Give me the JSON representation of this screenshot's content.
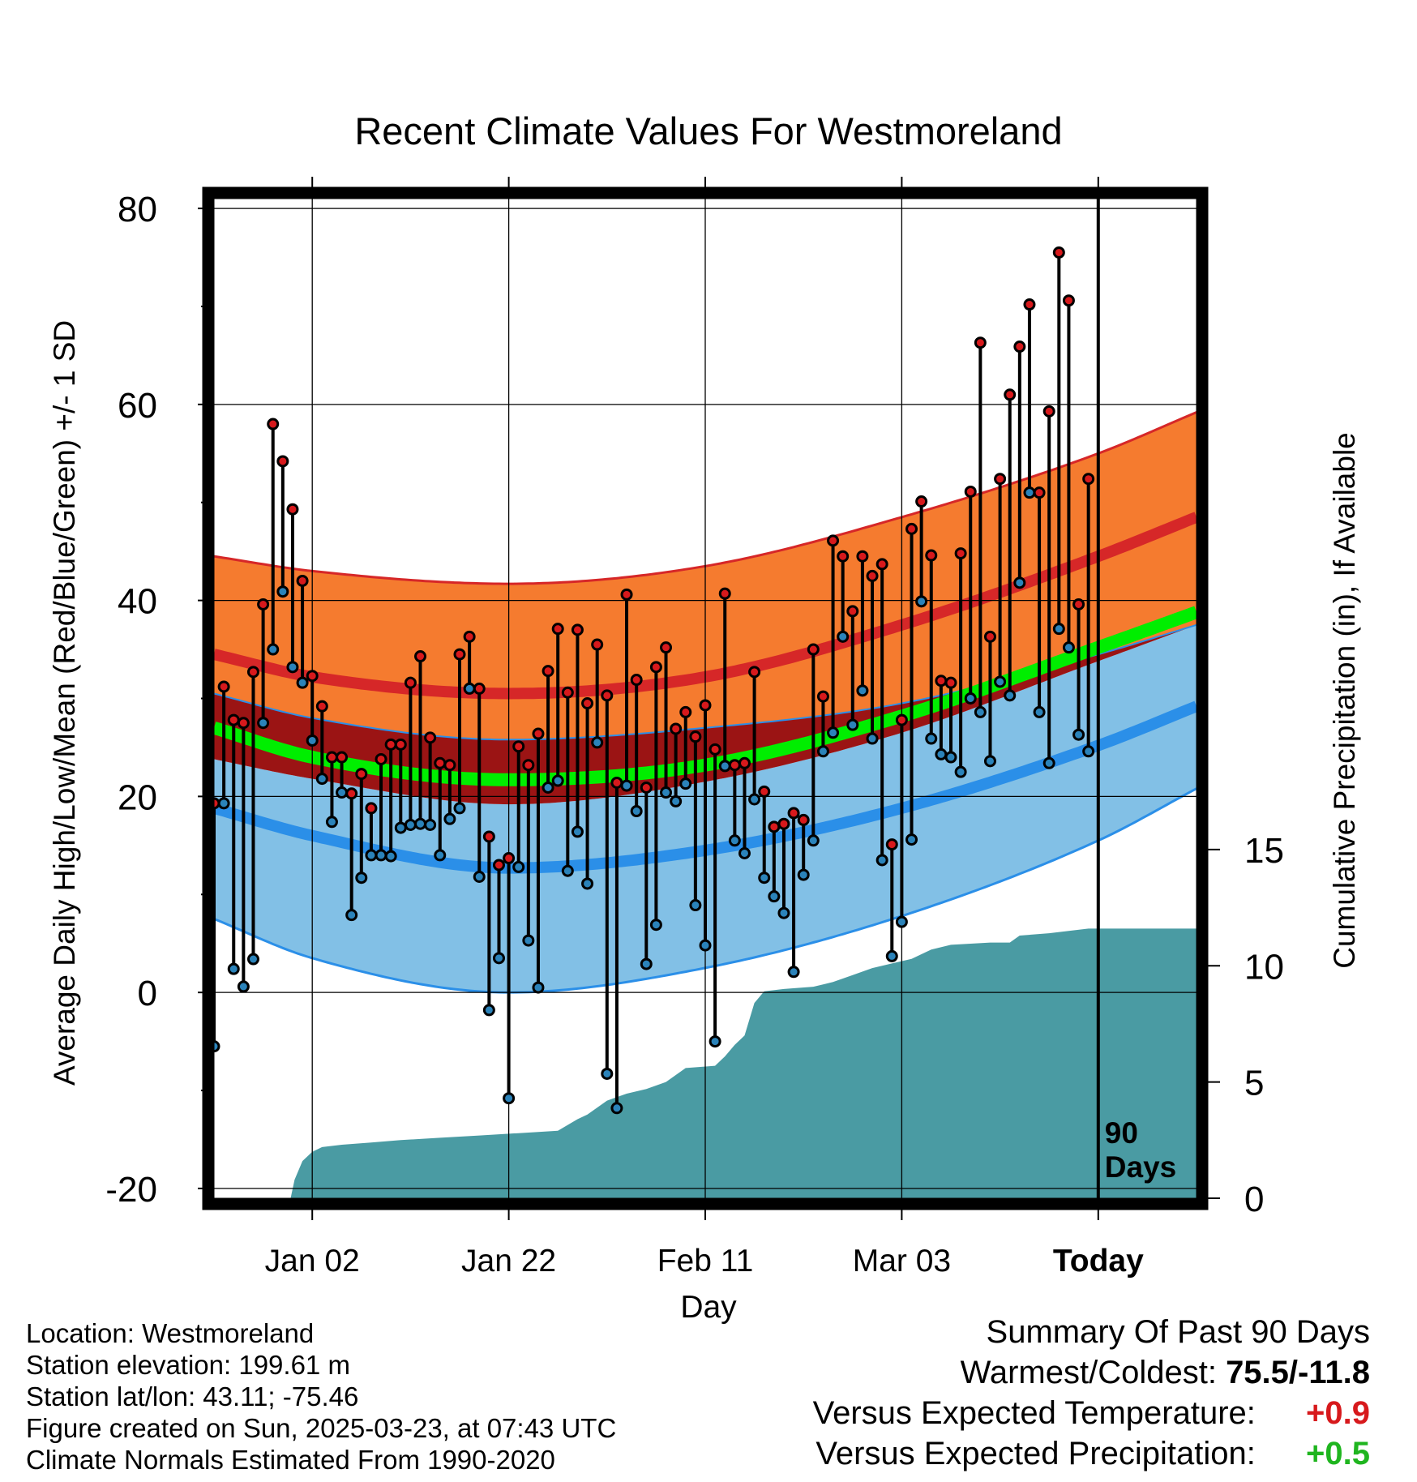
{
  "chart_data": {
    "type": "line",
    "title": "Recent Climate Values For Westmoreland",
    "xlabel": "Day",
    "ylabel_left": "Average Daily High/Low/Mean (Red/Blue/Green) +/- 1 SD",
    "ylabel_right": "Cumulative Precipitation (in), If Available",
    "x_range_days": [
      -79,
      21
    ],
    "y_range_temp": [
      -21,
      81
    ],
    "x_ticks": [
      {
        "day": -69,
        "label": "Jan 02"
      },
      {
        "day": -49,
        "label": "Jan 22"
      },
      {
        "day": -29,
        "label": "Feb 11"
      },
      {
        "day": -9,
        "label": "Mar 03"
      },
      {
        "day": 11,
        "label": "Today"
      }
    ],
    "y_ticks_left": [
      -20,
      0,
      20,
      40,
      60,
      80
    ],
    "y_ticks_right": [
      0,
      5,
      10,
      15
    ],
    "precip_scale_max": 43,
    "today_day": 11,
    "today_label": "90 Days",
    "normals": {
      "days": [
        -79,
        -69,
        -49,
        -29,
        -9,
        11,
        21
      ],
      "high_mean": [
        34.5,
        32.2,
        30.5,
        32.2,
        37.5,
        44.5,
        48.5
      ],
      "high_upper": [
        44.5,
        43.0,
        41.7,
        43.5,
        48.5,
        55.0,
        59.2
      ],
      "high_lower": [
        30.5,
        28.0,
        25.8,
        27.0,
        29.5,
        34.5,
        37.5
      ],
      "low_mean": [
        18.8,
        16.0,
        12.7,
        14.5,
        18.8,
        25.2,
        29.2
      ],
      "low_upper": [
        23.8,
        21.8,
        19.2,
        21.5,
        26.5,
        33.8,
        37.5
      ],
      "low_lower": [
        7.5,
        3.5,
        0.0,
        2.5,
        7.8,
        15.5,
        20.8
      ],
      "avg_mean": [
        27.0,
        24.0,
        21.7,
        23.2,
        28.2,
        35.2,
        38.8
      ]
    },
    "series": [
      {
        "name": "Daily High",
        "color": "#d7191c",
        "values": [
          [
            -79,
            19.3
          ],
          [
            -78,
            31.2
          ],
          [
            -77,
            27.8
          ],
          [
            -76,
            27.5
          ],
          [
            -75,
            32.7
          ],
          [
            -74,
            39.6
          ],
          [
            -73,
            58.0
          ],
          [
            -72,
            54.2
          ],
          [
            -71,
            49.3
          ],
          [
            -70,
            42.0
          ],
          [
            -69,
            32.3
          ],
          [
            -68,
            29.2
          ],
          [
            -67,
            24.0
          ],
          [
            -66,
            24.0
          ],
          [
            -65,
            20.3
          ],
          [
            -64,
            22.3
          ],
          [
            -63,
            18.8
          ],
          [
            -62,
            23.8
          ],
          [
            -61,
            25.3
          ],
          [
            -60,
            25.3
          ],
          [
            -59,
            31.6
          ],
          [
            -58,
            34.3
          ],
          [
            -57,
            26.0
          ],
          [
            -56,
            23.4
          ],
          [
            -55,
            23.2
          ],
          [
            -54,
            34.5
          ],
          [
            -53,
            36.3
          ],
          [
            -52,
            31.0
          ],
          [
            -51,
            15.9
          ],
          [
            -50,
            13.0
          ],
          [
            -49,
            13.7
          ],
          [
            -48,
            25.1
          ],
          [
            -47,
            23.2
          ],
          [
            -46,
            26.4
          ],
          [
            -45,
            32.8
          ],
          [
            -44,
            37.1
          ],
          [
            -43,
            30.6
          ],
          [
            -42,
            37.0
          ],
          [
            -41,
            29.5
          ],
          [
            -40,
            35.5
          ],
          [
            -39,
            30.3
          ],
          [
            -38,
            21.4
          ],
          [
            -37,
            40.6
          ],
          [
            -36,
            31.9
          ],
          [
            -35,
            20.9
          ],
          [
            -34,
            33.2
          ],
          [
            -33,
            35.2
          ],
          [
            -32,
            26.9
          ],
          [
            -31,
            28.6
          ],
          [
            -30,
            26.1
          ],
          [
            -29,
            29.3
          ],
          [
            -28,
            24.8
          ],
          [
            -27,
            40.7
          ],
          [
            -26,
            23.2
          ],
          [
            -25,
            23.4
          ],
          [
            -24,
            32.7
          ],
          [
            -23,
            20.5
          ],
          [
            -22,
            16.9
          ],
          [
            -21,
            17.2
          ],
          [
            -20,
            18.3
          ],
          [
            -19,
            17.6
          ],
          [
            -18,
            35.0
          ],
          [
            -17,
            30.2
          ],
          [
            -16,
            46.1
          ],
          [
            -15,
            44.5
          ],
          [
            -14,
            38.9
          ],
          [
            -13,
            44.5
          ],
          [
            -12,
            42.5
          ],
          [
            -11,
            43.7
          ],
          [
            -10,
            15.1
          ],
          [
            -9,
            27.8
          ],
          [
            -8,
            47.3
          ],
          [
            -7,
            50.1
          ],
          [
            -6,
            44.6
          ],
          [
            -5,
            31.8
          ],
          [
            -4,
            31.6
          ],
          [
            -3,
            44.8
          ],
          [
            -2,
            51.1
          ],
          [
            -1,
            66.3
          ],
          [
            0,
            36.3
          ],
          [
            1,
            52.4
          ],
          [
            2,
            61.0
          ],
          [
            3,
            65.9
          ],
          [
            4,
            70.2
          ],
          [
            5,
            51.0
          ],
          [
            6,
            59.3
          ],
          [
            7,
            75.5
          ],
          [
            8,
            70.6
          ],
          [
            9,
            39.6
          ],
          [
            10,
            52.4
          ]
        ]
      },
      {
        "name": "Daily Low",
        "color": "#2b83ba",
        "values": [
          [
            -79,
            -5.5
          ],
          [
            -78,
            19.3
          ],
          [
            -77,
            2.4
          ],
          [
            -76,
            0.6
          ],
          [
            -75,
            3.4
          ],
          [
            -74,
            27.5
          ],
          [
            -73,
            35.0
          ],
          [
            -72,
            40.9
          ],
          [
            -71,
            33.2
          ],
          [
            -70,
            31.6
          ],
          [
            -69,
            25.7
          ],
          [
            -68,
            21.8
          ],
          [
            -67,
            17.4
          ],
          [
            -66,
            20.4
          ],
          [
            -65,
            7.9
          ],
          [
            -64,
            11.7
          ],
          [
            -63,
            14.0
          ],
          [
            -62,
            14.0
          ],
          [
            -61,
            13.9
          ],
          [
            -60,
            16.8
          ],
          [
            -59,
            17.1
          ],
          [
            -58,
            17.2
          ],
          [
            -57,
            17.1
          ],
          [
            -56,
            14.0
          ],
          [
            -55,
            17.7
          ],
          [
            -54,
            18.8
          ],
          [
            -53,
            31.0
          ],
          [
            -52,
            11.8
          ],
          [
            -51,
            -1.8
          ],
          [
            -50,
            3.5
          ],
          [
            -49,
            -10.8
          ],
          [
            -48,
            12.8
          ],
          [
            -47,
            5.3
          ],
          [
            -46,
            0.5
          ],
          [
            -45,
            20.9
          ],
          [
            -44,
            21.6
          ],
          [
            -43,
            12.4
          ],
          [
            -42,
            16.4
          ],
          [
            -41,
            11.1
          ],
          [
            -40,
            25.5
          ],
          [
            -39,
            -8.3
          ],
          [
            -38,
            -11.8
          ],
          [
            -37,
            21.1
          ],
          [
            -36,
            18.5
          ],
          [
            -35,
            2.9
          ],
          [
            -34,
            6.9
          ],
          [
            -33,
            20.4
          ],
          [
            -32,
            19.5
          ],
          [
            -31,
            21.3
          ],
          [
            -30,
            8.9
          ],
          [
            -29,
            4.8
          ],
          [
            -28,
            -5.0
          ],
          [
            -27,
            23.1
          ],
          [
            -26,
            15.5
          ],
          [
            -25,
            14.2
          ],
          [
            -24,
            19.7
          ],
          [
            -23,
            11.7
          ],
          [
            -22,
            9.8
          ],
          [
            -21,
            8.1
          ],
          [
            -20,
            2.1
          ],
          [
            -19,
            12.0
          ],
          [
            -18,
            15.5
          ],
          [
            -17,
            24.6
          ],
          [
            -16,
            26.5
          ],
          [
            -15,
            36.3
          ],
          [
            -14,
            27.3
          ],
          [
            -13,
            30.8
          ],
          [
            -12,
            25.9
          ],
          [
            -11,
            13.5
          ],
          [
            -10,
            3.7
          ],
          [
            -9,
            7.2
          ],
          [
            -8,
            15.6
          ],
          [
            -7,
            39.9
          ],
          [
            -6,
            25.9
          ],
          [
            -5,
            24.3
          ],
          [
            -4,
            24.0
          ],
          [
            -3,
            22.5
          ],
          [
            -2,
            30.0
          ],
          [
            -1,
            28.6
          ],
          [
            0,
            23.6
          ],
          [
            1,
            31.7
          ],
          [
            2,
            30.3
          ],
          [
            3,
            41.8
          ],
          [
            4,
            51.0
          ],
          [
            5,
            28.6
          ],
          [
            6,
            23.4
          ],
          [
            7,
            37.1
          ],
          [
            8,
            35.2
          ],
          [
            9,
            26.3
          ],
          [
            10,
            24.6
          ]
        ]
      }
    ],
    "precip_cumulative": [
      [
        -77.8,
        0
      ],
      [
        -77,
        0
      ],
      [
        -72,
        0
      ],
      [
        -71.2,
        0
      ],
      [
        -70.8,
        0.8
      ],
      [
        -70,
        1.6
      ],
      [
        -69,
        2.0
      ],
      [
        -68,
        2.2
      ],
      [
        -66,
        2.3
      ],
      [
        -63,
        2.4
      ],
      [
        -60,
        2.5
      ],
      [
        -56,
        2.6
      ],
      [
        -52,
        2.7
      ],
      [
        -48,
        2.8
      ],
      [
        -44,
        2.9
      ],
      [
        -42,
        3.4
      ],
      [
        -41,
        3.6
      ],
      [
        -39,
        4.2
      ],
      [
        -37,
        4.5
      ],
      [
        -35,
        4.7
      ],
      [
        -33,
        5.0
      ],
      [
        -31,
        5.6
      ],
      [
        -28,
        5.7
      ],
      [
        -27,
        6.1
      ],
      [
        -26,
        6.6
      ],
      [
        -25,
        7.0
      ],
      [
        -24,
        8.4
      ],
      [
        -23,
        8.9
      ],
      [
        -21,
        9.0
      ],
      [
        -18,
        9.1
      ],
      [
        -16,
        9.3
      ],
      [
        -14,
        9.6
      ],
      [
        -12,
        9.9
      ],
      [
        -10,
        10.1
      ],
      [
        -8,
        10.3
      ],
      [
        -6,
        10.7
      ],
      [
        -4,
        10.9
      ],
      [
        0,
        11.0
      ],
      [
        2,
        11.0
      ],
      [
        3,
        11.3
      ],
      [
        6,
        11.4
      ],
      [
        8,
        11.5
      ],
      [
        10,
        11.6
      ],
      [
        12,
        11.6
      ],
      [
        21,
        11.6
      ]
    ]
  },
  "footer": {
    "location": "Location: Westmoreland",
    "elevation": "Station elevation: 199.61 m",
    "latlon": "Station lat/lon: 43.11; -75.46",
    "created": "Figure created on Sun, 2025-03-23, at 07:43 UTC",
    "normals": "Climate Normals Estimated From 1990-2020"
  },
  "summary": {
    "title": "Summary Of Past 90 Days",
    "warm_label": "Warmest/Coldest:",
    "warm_value": "75.5/-11.8",
    "temp_label": "Versus Expected Temperature:",
    "temp_value": "+0.9",
    "temp_color": "#d7191c",
    "precip_label": "Versus Expected Precipitation:",
    "precip_value": "+0.5",
    "precip_color": "#1fb51f"
  },
  "colors": {
    "high_band": "#f57b2f",
    "high_line": "#d62728",
    "overlap_band": "#9b1414",
    "low_band": "#82c0e6",
    "low_line": "#2b8fe8",
    "mean_line": "#00ee00",
    "precip_fill": "#4a9ba3"
  }
}
